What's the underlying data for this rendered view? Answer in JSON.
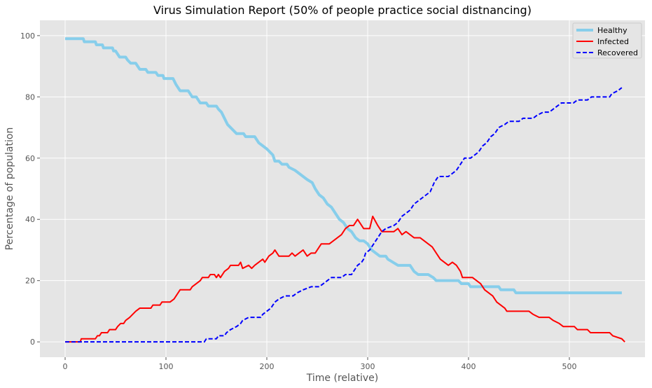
{
  "chart_data": {
    "type": "line",
    "title": "Virus Simulation Report (50% of people practice social distnancing)",
    "xlabel": "Time (relative)",
    "ylabel": "Percentage of population",
    "xlim": [
      -25,
      575
    ],
    "ylim": [
      -5,
      105
    ],
    "x_ticks": [
      0,
      100,
      200,
      300,
      400,
      500
    ],
    "y_ticks": [
      0,
      20,
      40,
      60,
      80,
      100
    ],
    "grid": true,
    "legend_position": "top-right",
    "series": [
      {
        "name": "Healthy",
        "color": "#87ceeb",
        "style": "solid",
        "points": [
          [
            0,
            99
          ],
          [
            18,
            99
          ],
          [
            19,
            98
          ],
          [
            30,
            98
          ],
          [
            31,
            97
          ],
          [
            37,
            97
          ],
          [
            38,
            96
          ],
          [
            47,
            96
          ],
          [
            48,
            95
          ],
          [
            50,
            95
          ],
          [
            52,
            94
          ],
          [
            54,
            93
          ],
          [
            60,
            93
          ],
          [
            62,
            92
          ],
          [
            65,
            91
          ],
          [
            70,
            91
          ],
          [
            72,
            90
          ],
          [
            74,
            89
          ],
          [
            80,
            89
          ],
          [
            82,
            88
          ],
          [
            90,
            88
          ],
          [
            92,
            87
          ],
          [
            97,
            87
          ],
          [
            98,
            86
          ],
          [
            107,
            86
          ],
          [
            110,
            84
          ],
          [
            112,
            83
          ],
          [
            114,
            82
          ],
          [
            122,
            82
          ],
          [
            124,
            81
          ],
          [
            126,
            80
          ],
          [
            130,
            80
          ],
          [
            132,
            79
          ],
          [
            134,
            78
          ],
          [
            140,
            78
          ],
          [
            142,
            77
          ],
          [
            150,
            77
          ],
          [
            152,
            76
          ],
          [
            155,
            75
          ],
          [
            158,
            73
          ],
          [
            161,
            71
          ],
          [
            164,
            70
          ],
          [
            167,
            69
          ],
          [
            170,
            68
          ],
          [
            177,
            68
          ],
          [
            179,
            67
          ],
          [
            188,
            67
          ],
          [
            192,
            65
          ],
          [
            196,
            64
          ],
          [
            200,
            63
          ],
          [
            203,
            62
          ],
          [
            206,
            61
          ],
          [
            208,
            59
          ],
          [
            212,
            59
          ],
          [
            215,
            58
          ],
          [
            220,
            58
          ],
          [
            222,
            57
          ],
          [
            228,
            56
          ],
          [
            232,
            55
          ],
          [
            236,
            54
          ],
          [
            240,
            53
          ],
          [
            245,
            52
          ],
          [
            248,
            50
          ],
          [
            252,
            48
          ],
          [
            256,
            47
          ],
          [
            260,
            45
          ],
          [
            264,
            44
          ],
          [
            268,
            42
          ],
          [
            272,
            40
          ],
          [
            276,
            39
          ],
          [
            280,
            37
          ],
          [
            284,
            36
          ],
          [
            288,
            34
          ],
          [
            292,
            33
          ],
          [
            296,
            33
          ],
          [
            300,
            32
          ],
          [
            304,
            30
          ],
          [
            308,
            29
          ],
          [
            312,
            28
          ],
          [
            318,
            28
          ],
          [
            320,
            27
          ],
          [
            325,
            26
          ],
          [
            330,
            25
          ],
          [
            342,
            25
          ],
          [
            346,
            23
          ],
          [
            350,
            22
          ],
          [
            360,
            22
          ],
          [
            365,
            21
          ],
          [
            368,
            20
          ],
          [
            390,
            20
          ],
          [
            393,
            19
          ],
          [
            400,
            19
          ],
          [
            402,
            18
          ],
          [
            430,
            18
          ],
          [
            432,
            17
          ],
          [
            445,
            17
          ],
          [
            447,
            16
          ],
          [
            552,
            16
          ]
        ]
      },
      {
        "name": "Infected",
        "color": "#ff0000",
        "style": "solid",
        "points": [
          [
            0,
            0
          ],
          [
            15,
            0
          ],
          [
            16,
            1
          ],
          [
            30,
            1
          ],
          [
            32,
            2
          ],
          [
            34,
            2
          ],
          [
            36,
            3
          ],
          [
            42,
            3
          ],
          [
            44,
            4
          ],
          [
            50,
            4
          ],
          [
            52,
            5
          ],
          [
            55,
            6
          ],
          [
            58,
            6
          ],
          [
            60,
            7
          ],
          [
            64,
            8
          ],
          [
            67,
            9
          ],
          [
            70,
            10
          ],
          [
            74,
            11
          ],
          [
            85,
            11
          ],
          [
            87,
            12
          ],
          [
            94,
            12
          ],
          [
            96,
            13
          ],
          [
            104,
            13
          ],
          [
            108,
            14
          ],
          [
            110,
            15
          ],
          [
            112,
            16
          ],
          [
            114,
            17
          ],
          [
            124,
            17
          ],
          [
            126,
            18
          ],
          [
            130,
            19
          ],
          [
            134,
            20
          ],
          [
            136,
            21
          ],
          [
            142,
            21
          ],
          [
            144,
            22
          ],
          [
            148,
            22
          ],
          [
            150,
            21
          ],
          [
            152,
            22
          ],
          [
            154,
            21
          ],
          [
            158,
            23
          ],
          [
            162,
            24
          ],
          [
            164,
            25
          ],
          [
            172,
            25
          ],
          [
            174,
            26
          ],
          [
            176,
            24
          ],
          [
            182,
            25
          ],
          [
            185,
            24
          ],
          [
            188,
            25
          ],
          [
            192,
            26
          ],
          [
            196,
            27
          ],
          [
            198,
            26
          ],
          [
            202,
            28
          ],
          [
            206,
            29
          ],
          [
            208,
            30
          ],
          [
            212,
            28
          ],
          [
            222,
            28
          ],
          [
            225,
            29
          ],
          [
            228,
            28
          ],
          [
            232,
            29
          ],
          [
            236,
            30
          ],
          [
            240,
            28
          ],
          [
            244,
            29
          ],
          [
            248,
            29
          ],
          [
            252,
            31
          ],
          [
            254,
            32
          ],
          [
            262,
            32
          ],
          [
            266,
            33
          ],
          [
            270,
            34
          ],
          [
            274,
            35
          ],
          [
            278,
            37
          ],
          [
            282,
            38
          ],
          [
            286,
            38
          ],
          [
            290,
            40
          ],
          [
            294,
            38
          ],
          [
            296,
            37
          ],
          [
            302,
            37
          ],
          [
            305,
            41
          ],
          [
            310,
            38
          ],
          [
            314,
            36
          ],
          [
            318,
            36
          ],
          [
            326,
            36
          ],
          [
            330,
            37
          ],
          [
            334,
            35
          ],
          [
            338,
            36
          ],
          [
            342,
            35
          ],
          [
            346,
            34
          ],
          [
            352,
            34
          ],
          [
            356,
            33
          ],
          [
            360,
            32
          ],
          [
            364,
            31
          ],
          [
            368,
            29
          ],
          [
            372,
            27
          ],
          [
            376,
            26
          ],
          [
            380,
            25
          ],
          [
            384,
            26
          ],
          [
            388,
            25
          ],
          [
            392,
            23
          ],
          [
            394,
            21
          ],
          [
            404,
            21
          ],
          [
            408,
            20
          ],
          [
            412,
            19
          ],
          [
            416,
            17
          ],
          [
            420,
            16
          ],
          [
            424,
            15
          ],
          [
            428,
            13
          ],
          [
            432,
            12
          ],
          [
            436,
            11
          ],
          [
            438,
            10
          ],
          [
            460,
            10
          ],
          [
            464,
            9
          ],
          [
            470,
            8
          ],
          [
            480,
            8
          ],
          [
            484,
            7
          ],
          [
            490,
            6
          ],
          [
            494,
            5
          ],
          [
            505,
            5
          ],
          [
            508,
            4
          ],
          [
            518,
            4
          ],
          [
            521,
            3
          ],
          [
            540,
            3
          ],
          [
            543,
            2
          ],
          [
            552,
            1
          ],
          [
            555,
            0
          ]
        ]
      },
      {
        "name": "Recovered",
        "color": "#0000ff",
        "style": "dashed",
        "points": [
          [
            0,
            0
          ],
          [
            138,
            0
          ],
          [
            140,
            1
          ],
          [
            150,
            1
          ],
          [
            152,
            2
          ],
          [
            158,
            2
          ],
          [
            160,
            3
          ],
          [
            164,
            4
          ],
          [
            170,
            5
          ],
          [
            174,
            6
          ],
          [
            176,
            7
          ],
          [
            182,
            8
          ],
          [
            194,
            8
          ],
          [
            196,
            9
          ],
          [
            200,
            10
          ],
          [
            204,
            11
          ],
          [
            208,
            13
          ],
          [
            212,
            14
          ],
          [
            218,
            15
          ],
          [
            226,
            15
          ],
          [
            230,
            16
          ],
          [
            236,
            17
          ],
          [
            244,
            18
          ],
          [
            252,
            18
          ],
          [
            256,
            19
          ],
          [
            260,
            20
          ],
          [
            264,
            21
          ],
          [
            274,
            21
          ],
          [
            278,
            22
          ],
          [
            284,
            22
          ],
          [
            286,
            23
          ],
          [
            290,
            25
          ],
          [
            294,
            26
          ],
          [
            296,
            27
          ],
          [
            298,
            29
          ],
          [
            302,
            30
          ],
          [
            306,
            32
          ],
          [
            310,
            34
          ],
          [
            314,
            36
          ],
          [
            318,
            37
          ],
          [
            326,
            38
          ],
          [
            330,
            39
          ],
          [
            334,
            41
          ],
          [
            338,
            42
          ],
          [
            342,
            43
          ],
          [
            346,
            45
          ],
          [
            350,
            46
          ],
          [
            354,
            47
          ],
          [
            358,
            48
          ],
          [
            362,
            49
          ],
          [
            366,
            52
          ],
          [
            370,
            54
          ],
          [
            380,
            54
          ],
          [
            384,
            55
          ],
          [
            388,
            56
          ],
          [
            392,
            58
          ],
          [
            396,
            60
          ],
          [
            402,
            60
          ],
          [
            406,
            61
          ],
          [
            410,
            62
          ],
          [
            414,
            64
          ],
          [
            418,
            65
          ],
          [
            422,
            67
          ],
          [
            426,
            68
          ],
          [
            430,
            70
          ],
          [
            436,
            71
          ],
          [
            440,
            72
          ],
          [
            450,
            72
          ],
          [
            454,
            73
          ],
          [
            464,
            73
          ],
          [
            468,
            74
          ],
          [
            474,
            75
          ],
          [
            480,
            75
          ],
          [
            484,
            76
          ],
          [
            488,
            77
          ],
          [
            492,
            78
          ],
          [
            504,
            78
          ],
          [
            508,
            79
          ],
          [
            518,
            79
          ],
          [
            522,
            80
          ],
          [
            540,
            80
          ],
          [
            542,
            81
          ],
          [
            548,
            82
          ],
          [
            552,
            83
          ]
        ]
      }
    ]
  }
}
